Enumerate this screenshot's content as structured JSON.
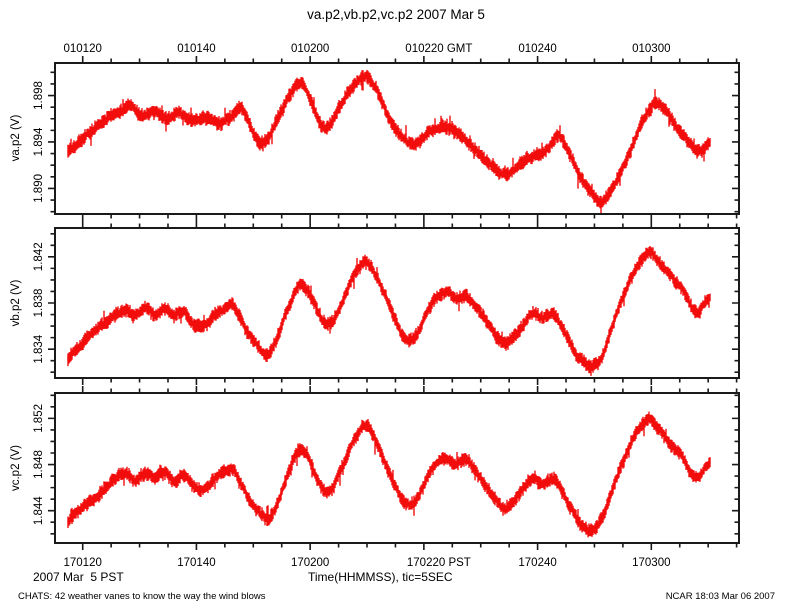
{
  "title": "va.p2,vb.p2,vc.p2 2007 Mar 5",
  "bottom": {
    "date_label": "2007 Mar  5 PST",
    "xlabel": "Time(HHMMSS), tic=5SEC"
  },
  "footer": {
    "left": "CHATS: 42 weather vanes to know the way the wind blows",
    "right": "NCAR 18:03 Mar 06 2007"
  },
  "colors": {
    "trace": "#f20d0d",
    "frame": "#1a1a1a",
    "text": "#000000",
    "background": "#ffffff"
  },
  "chart_data": {
    "type": "line",
    "title": "va.p2,vb.p2,vc.p2 2007 Mar 5",
    "xlabel": "Time(HHMMSS), tic=5SEC",
    "legend": "none",
    "grid": false,
    "x_axis": {
      "top_tick_labels": [
        "010120",
        "010140",
        "010200",
        "010220 GMT",
        "010240",
        "010300"
      ],
      "bottom_tick_labels": [
        "170120",
        "170140",
        "170200",
        "170220 PST",
        "170240",
        "170300"
      ],
      "first_major_frac": 0.0405,
      "major_step_frac": 0.16626,
      "minors_per_major": 4,
      "minor_tick_total": 24,
      "tic_interval_sec": 5,
      "trace_start_frac": 0.019,
      "trace_end_frac": 0.9576
    },
    "noise": {
      "half_band_volts": 0.00045,
      "spike_prob": 0.025,
      "spike_extra_volts": 0.00045
    },
    "panels": [
      {
        "id": "va",
        "ylabel": "va.p2 (V)",
        "ylim": [
          1.8878,
          1.9008
        ],
        "yticks": [
          1.89,
          1.894,
          1.898
        ],
        "y_minor_step": 0.001,
        "seed": 42,
        "points": [
          [
            0.0,
            1.8932
          ],
          [
            0.02,
            1.8942
          ],
          [
            0.05,
            1.8956
          ],
          [
            0.075,
            1.8964
          ],
          [
            0.095,
            1.8969
          ],
          [
            0.115,
            1.8961
          ],
          [
            0.135,
            1.8966
          ],
          [
            0.155,
            1.8959
          ],
          [
            0.175,
            1.8965
          ],
          [
            0.195,
            1.8957
          ],
          [
            0.215,
            1.8962
          ],
          [
            0.235,
            1.8956
          ],
          [
            0.255,
            1.8963
          ],
          [
            0.27,
            1.8969
          ],
          [
            0.285,
            1.8952
          ],
          [
            0.3,
            1.8938
          ],
          [
            0.315,
            1.8946
          ],
          [
            0.335,
            1.8968
          ],
          [
            0.361,
            1.8993
          ],
          [
            0.378,
            1.8976
          ],
          [
            0.395,
            1.8954
          ],
          [
            0.412,
            1.896
          ],
          [
            0.435,
            1.8982
          ],
          [
            0.462,
            1.8996
          ],
          [
            0.48,
            1.8986
          ],
          [
            0.5,
            1.8962
          ],
          [
            0.52,
            1.8944
          ],
          [
            0.54,
            1.8938
          ],
          [
            0.558,
            1.8947
          ],
          [
            0.585,
            1.8953
          ],
          [
            0.615,
            1.8944
          ],
          [
            0.65,
            1.8926
          ],
          [
            0.685,
            1.8913
          ],
          [
            0.705,
            1.8923
          ],
          [
            0.73,
            1.8929
          ],
          [
            0.75,
            1.8936
          ],
          [
            0.765,
            1.8947
          ],
          [
            0.78,
            1.8932
          ],
          [
            0.8,
            1.891
          ],
          [
            0.818,
            1.8894
          ],
          [
            0.832,
            1.8888
          ],
          [
            0.848,
            1.8898
          ],
          [
            0.87,
            1.8924
          ],
          [
            0.892,
            1.8954
          ],
          [
            0.915,
            1.8974
          ],
          [
            0.935,
            1.8965
          ],
          [
            0.953,
            1.8949
          ],
          [
            0.972,
            1.8936
          ],
          [
            0.985,
            1.8933
          ],
          [
            1.0,
            1.8943
          ]
        ]
      },
      {
        "id": "vb",
        "ylabel": "vb.p2 (V)",
        "ylim": [
          1.8315,
          1.8445
        ],
        "yticks": [
          1.834,
          1.838,
          1.842
        ],
        "y_minor_step": 0.001,
        "seed": 1337,
        "points": [
          [
            0.0,
            1.8332
          ],
          [
            0.02,
            1.8345
          ],
          [
            0.045,
            1.8357
          ],
          [
            0.07,
            1.8368
          ],
          [
            0.09,
            1.8375
          ],
          [
            0.105,
            1.8369
          ],
          [
            0.12,
            1.8376
          ],
          [
            0.135,
            1.837
          ],
          [
            0.15,
            1.8377
          ],
          [
            0.165,
            1.837
          ],
          [
            0.18,
            1.8374
          ],
          [
            0.195,
            1.8364
          ],
          [
            0.21,
            1.836
          ],
          [
            0.225,
            1.8368
          ],
          [
            0.24,
            1.8374
          ],
          [
            0.255,
            1.8379
          ],
          [
            0.27,
            1.8366
          ],
          [
            0.285,
            1.835
          ],
          [
            0.3,
            1.834
          ],
          [
            0.312,
            1.8336
          ],
          [
            0.325,
            1.8348
          ],
          [
            0.34,
            1.8372
          ],
          [
            0.361,
            1.8396
          ],
          [
            0.375,
            1.8388
          ],
          [
            0.395,
            1.8366
          ],
          [
            0.41,
            1.8362
          ],
          [
            0.425,
            1.838
          ],
          [
            0.445,
            1.8404
          ],
          [
            0.462,
            1.8416
          ],
          [
            0.478,
            1.8406
          ],
          [
            0.495,
            1.8385
          ],
          [
            0.515,
            1.836
          ],
          [
            0.53,
            1.8348
          ],
          [
            0.545,
            1.8356
          ],
          [
            0.56,
            1.8374
          ],
          [
            0.575,
            1.8386
          ],
          [
            0.59,
            1.839
          ],
          [
            0.605,
            1.8383
          ],
          [
            0.62,
            1.8387
          ],
          [
            0.635,
            1.8378
          ],
          [
            0.65,
            1.8366
          ],
          [
            0.665,
            1.8352
          ],
          [
            0.68,
            1.8346
          ],
          [
            0.695,
            1.8352
          ],
          [
            0.71,
            1.8362
          ],
          [
            0.725,
            1.837
          ],
          [
            0.74,
            1.8365
          ],
          [
            0.755,
            1.8371
          ],
          [
            0.768,
            1.8362
          ],
          [
            0.785,
            1.8344
          ],
          [
            0.8,
            1.8332
          ],
          [
            0.815,
            1.8326
          ],
          [
            0.83,
            1.8334
          ],
          [
            0.845,
            1.8356
          ],
          [
            0.865,
            1.8386
          ],
          [
            0.885,
            1.841
          ],
          [
            0.905,
            1.8424
          ],
          [
            0.918,
            1.8417
          ],
          [
            0.932,
            1.8408
          ],
          [
            0.945,
            1.8398
          ],
          [
            0.958,
            1.839
          ],
          [
            0.97,
            1.8378
          ],
          [
            0.982,
            1.8372
          ],
          [
            0.992,
            1.838
          ],
          [
            1.0,
            1.8384
          ]
        ]
      },
      {
        "id": "vc",
        "ylabel": "vc.p2 (V)",
        "ylim": [
          1.8412,
          1.8542
        ],
        "yticks": [
          1.844,
          1.848,
          1.852
        ],
        "y_minor_step": 0.001,
        "seed": 2024,
        "points": [
          [
            0.0,
            1.8429
          ],
          [
            0.02,
            1.8442
          ],
          [
            0.045,
            1.8454
          ],
          [
            0.07,
            1.8465
          ],
          [
            0.09,
            1.8472
          ],
          [
            0.105,
            1.8466
          ],
          [
            0.12,
            1.8473
          ],
          [
            0.135,
            1.8467
          ],
          [
            0.15,
            1.8474
          ],
          [
            0.165,
            1.8467
          ],
          [
            0.18,
            1.8471
          ],
          [
            0.195,
            1.8461
          ],
          [
            0.21,
            1.8457
          ],
          [
            0.225,
            1.8465
          ],
          [
            0.24,
            1.8471
          ],
          [
            0.255,
            1.8476
          ],
          [
            0.27,
            1.8463
          ],
          [
            0.285,
            1.8447
          ],
          [
            0.3,
            1.8437
          ],
          [
            0.312,
            1.8433
          ],
          [
            0.325,
            1.8445
          ],
          [
            0.34,
            1.8469
          ],
          [
            0.361,
            1.8493
          ],
          [
            0.375,
            1.8485
          ],
          [
            0.395,
            1.8463
          ],
          [
            0.41,
            1.8459
          ],
          [
            0.425,
            1.8477
          ],
          [
            0.445,
            1.8501
          ],
          [
            0.462,
            1.8513
          ],
          [
            0.478,
            1.8503
          ],
          [
            0.495,
            1.8482
          ],
          [
            0.515,
            1.8457
          ],
          [
            0.53,
            1.8445
          ],
          [
            0.545,
            1.8453
          ],
          [
            0.56,
            1.8471
          ],
          [
            0.575,
            1.8483
          ],
          [
            0.59,
            1.8487
          ],
          [
            0.605,
            1.848
          ],
          [
            0.62,
            1.8484
          ],
          [
            0.635,
            1.8475
          ],
          [
            0.65,
            1.8463
          ],
          [
            0.665,
            1.8449
          ],
          [
            0.68,
            1.8443
          ],
          [
            0.695,
            1.8449
          ],
          [
            0.71,
            1.8459
          ],
          [
            0.725,
            1.8467
          ],
          [
            0.74,
            1.8462
          ],
          [
            0.755,
            1.8468
          ],
          [
            0.768,
            1.8459
          ],
          [
            0.785,
            1.8441
          ],
          [
            0.8,
            1.8429
          ],
          [
            0.815,
            1.8423
          ],
          [
            0.83,
            1.8431
          ],
          [
            0.845,
            1.8453
          ],
          [
            0.865,
            1.8483
          ],
          [
            0.885,
            1.8507
          ],
          [
            0.905,
            1.8521
          ],
          [
            0.918,
            1.8514
          ],
          [
            0.932,
            1.8505
          ],
          [
            0.945,
            1.8495
          ],
          [
            0.958,
            1.8487
          ],
          [
            0.97,
            1.8475
          ],
          [
            0.982,
            1.8469
          ],
          [
            0.992,
            1.8477
          ],
          [
            1.0,
            1.8481
          ]
        ]
      }
    ]
  }
}
